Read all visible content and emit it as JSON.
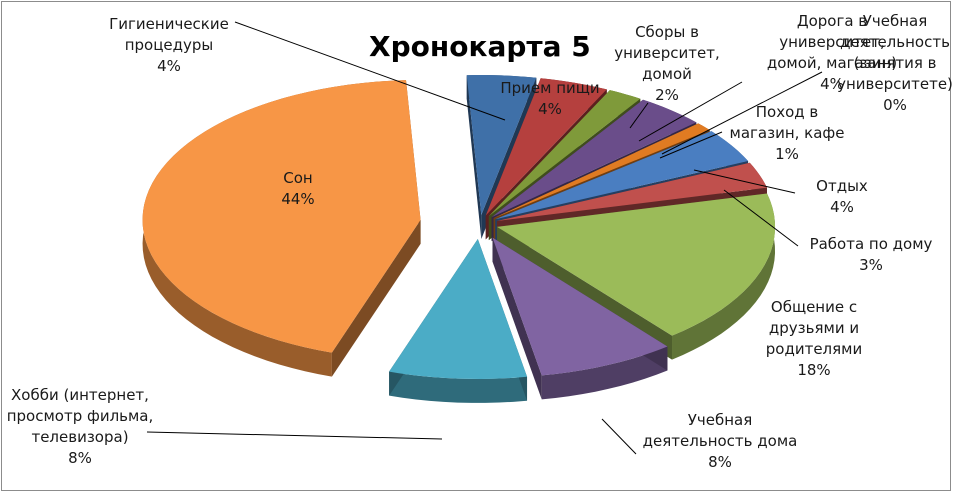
{
  "chart_data": {
    "type": "pie",
    "title": "Хронокарта 5",
    "categories": [
      "Гигиенические процедуры",
      "Прием пищи",
      "Сборы в университет, домой",
      "Дорога в университет, домой, магазин",
      "Поход в магазин, кафе",
      "Учебная деятельность в университете",
      "Отдых",
      "Работа по дому",
      "Общение с друзьями и родителями",
      "Учебная деятельность дома",
      "Хобби (интернет, просмотр фильма, телевизора)",
      "Сон"
    ],
    "values": [
      4,
      4,
      2,
      4,
      1,
      0,
      4,
      3,
      18,
      8,
      8,
      44
    ],
    "value_labels": [
      "4%",
      "4%",
      "2%",
      "4%",
      "1%",
      "0%",
      "4%",
      "3%",
      "18%",
      "8%",
      "8%",
      "44%"
    ],
    "label_lines": [
      [
        "Гигиенические",
        "процедуры",
        "4%"
      ],
      [
        "Прием пищи",
        "4%"
      ],
      [
        "Сборы в",
        "университет,",
        "домой",
        "2%"
      ],
      [
        "Дорога в",
        "университет,",
        "домой, магазин)",
        "4%"
      ],
      [
        "Поход в",
        "магазин, кафе",
        "1%"
      ],
      [
        "Учебная",
        "деятельность",
        "(занятия в",
        "университете)",
        "0%"
      ],
      [
        "Отдых",
        "4%"
      ],
      [
        "Работа по дому",
        "3%"
      ],
      [
        "Общение с",
        "друзьями и",
        "родителями",
        "18%"
      ],
      [
        "Учебная",
        "деятельность дома",
        "8%"
      ],
      [
        "Хобби (интернет,",
        "просмотр фильма,",
        "телевизора)",
        "8%"
      ],
      [
        "Сон",
        "44%"
      ]
    ],
    "colors": [
      "#3F70A8",
      "#B5403E",
      "#7F9A3A",
      "#6A4D8A",
      "#E07B22",
      "#3D85A5",
      "#4A7EC1",
      "#C0504D",
      "#9BBB59",
      "#8064A2",
      "#4BACC6",
      "#F79646"
    ],
    "style": "exploded 3d pie",
    "legend": "none (category labels beside slices)"
  }
}
